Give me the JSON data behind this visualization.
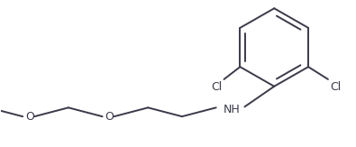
{
  "bg_color": "#ffffff",
  "line_color": "#3a3a4a",
  "label_color": "#3a3a4a",
  "cl_left_label": "Cl",
  "cl_right_label": "Cl",
  "nh_label": "NH",
  "o_label1": "O",
  "o_label2": "O",
  "figsize": [
    3.95,
    1.63
  ],
  "dpi": 100
}
